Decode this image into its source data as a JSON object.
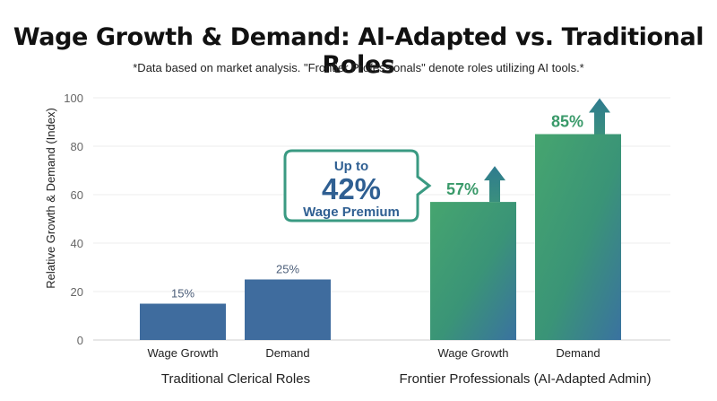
{
  "chart_data": {
    "type": "bar",
    "title": "Wage Growth & Demand: AI-Adapted vs. Traditional Roles",
    "subtitle": "*Data based on market analysis. \"Frontier Professionals\" denote roles utilizing AI tools.*",
    "ylabel": "Relative Growth & Demand (Index)",
    "ylim": [
      0,
      100
    ],
    "yticks": [
      0,
      20,
      40,
      60,
      80,
      100
    ],
    "grid": true,
    "groups": [
      {
        "label": "Traditional Clerical Roles",
        "categories": [
          "Wage Growth",
          "Demand"
        ],
        "values": [
          15,
          25
        ],
        "value_labels": [
          "15%",
          "25%"
        ],
        "color": "#3f6c9e",
        "style": "flat"
      },
      {
        "label": "Frontier Professionals (AI-Adapted Admin)",
        "categories": [
          "Wage Growth",
          "Demand"
        ],
        "values": [
          57,
          85
        ],
        "value_labels": [
          "57%",
          "85%"
        ],
        "color": "#3f9a6b",
        "style": "gradient-with-up-arrow"
      }
    ],
    "callout": {
      "line1": "Up to",
      "line2": "42%",
      "line3": "Wage Premium",
      "accent": "#3a9a82",
      "text_color": "#2f5f92"
    }
  }
}
